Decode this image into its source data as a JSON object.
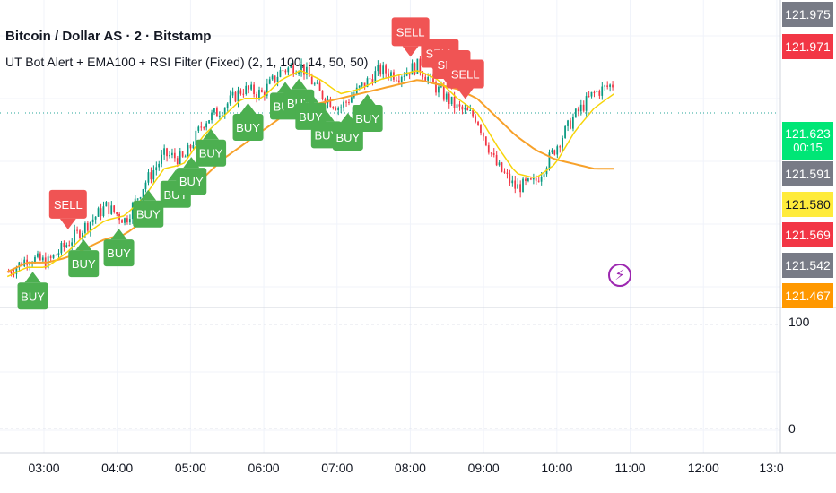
{
  "header": {
    "symbol_title": "Bitcoin / Dollar AS · 2 · Bitstamp",
    "indicator_title": "UT Bot Alert + EMA100 + RSI Filter (Fixed) (2, 1, 100, 14, 50, 50)"
  },
  "price_tags": [
    {
      "value": "121.975",
      "color": "#787b86"
    },
    {
      "value": "121.971",
      "color": "#f23645"
    },
    {
      "value": "121.623",
      "sub": "00:15",
      "color": "#00e676"
    },
    {
      "value": "121.591",
      "color": "#787b86"
    },
    {
      "value": "121.580",
      "color": "#ffeb3b",
      "text_color": "#131722"
    },
    {
      "value": "121.569",
      "color": "#f23645"
    },
    {
      "value": "121.542",
      "color": "#787b86"
    },
    {
      "value": "121.467",
      "color": "#ff9800"
    }
  ],
  "oscillator": {
    "top_label": "100",
    "bottom_label": "0"
  },
  "colors": {
    "candle_up": "#089981",
    "candle_down": "#f23645",
    "ema": "#f7a12a",
    "trail": "#f7d40a",
    "buy": "#4caf50",
    "sell": "#f05454",
    "grid": "#f0f3fa"
  },
  "icons": {
    "alert": "lightning-icon"
  },
  "chart_data": {
    "type": "candlestick",
    "x_ticks": [
      "03:00",
      "04:00",
      "05:00",
      "06:00",
      "07:00",
      "08:00",
      "09:00",
      "10:00",
      "11:00",
      "12:00",
      "13:0"
    ],
    "series": [
      {
        "type": "candle",
        "close": [
          121.47,
          121.5,
          121.49,
          121.53,
          121.57,
          121.61,
          121.58,
          121.66,
          121.72,
          121.71,
          121.79,
          121.82,
          121.86,
          121.85,
          121.9,
          121.91,
          121.85,
          121.82,
          121.86,
          121.9,
          121.89,
          121.91,
          121.86,
          121.82,
          121.8,
          121.7,
          121.65,
          121.66,
          121.73,
          121.8,
          121.85,
          121.87
        ]
      },
      {
        "type": "line",
        "close": [
          121.47,
          121.49,
          121.49,
          121.5,
          121.52,
          121.54,
          121.55,
          121.58,
          121.61,
          121.64,
          121.67,
          121.71,
          121.74,
          121.77,
          121.8,
          121.82,
          121.83,
          121.84,
          121.85,
          121.86,
          121.87,
          121.88,
          121.87,
          121.86,
          121.84,
          121.8,
          121.76,
          121.73,
          121.71,
          121.7,
          121.69,
          121.69
        ]
      },
      {
        "type": "line",
        "close": [
          121.46,
          121.48,
          121.48,
          121.51,
          121.55,
          121.58,
          121.59,
          121.63,
          121.69,
          121.7,
          121.76,
          121.8,
          121.84,
          121.84,
          121.88,
          121.9,
          121.88,
          121.85,
          121.86,
          121.88,
          121.89,
          121.9,
          121.88,
          121.84,
          121.81,
          121.74,
          121.68,
          121.67,
          121.7,
          121.77,
          121.82,
          121.85
        ]
      }
    ],
    "signals": [
      {
        "label": "SELL",
        "kind": "sell",
        "t": 4.1
      },
      {
        "label": "BUY",
        "kind": "buy",
        "t": 2.3
      },
      {
        "label": "BUY",
        "kind": "buy",
        "t": 4.9
      },
      {
        "label": "BUY",
        "kind": "buy",
        "t": 6.7
      },
      {
        "label": "BUY",
        "kind": "buy",
        "t": 8.2
      },
      {
        "label": "BUY",
        "kind": "buy",
        "t": 9.6
      },
      {
        "label": "BUY",
        "kind": "buy",
        "t": 10.4
      },
      {
        "label": "BUY",
        "kind": "buy",
        "t": 11.4
      },
      {
        "label": "BUY",
        "kind": "buy",
        "t": 13.3
      },
      {
        "label": "BUY",
        "kind": "buy",
        "t": 15.2
      },
      {
        "label": "BUY",
        "kind": "buy",
        "t": 15.9
      },
      {
        "label": "BUY",
        "kind": "buy",
        "t": 16.5
      },
      {
        "label": "BUY",
        "kind": "buy",
        "t": 17.3
      },
      {
        "label": "BUY",
        "kind": "buy",
        "t": 18.4
      },
      {
        "label": "BUY",
        "kind": "buy",
        "t": 19.4
      },
      {
        "label": "SELL",
        "kind": "sell",
        "t": 21.6
      },
      {
        "label": "SELL",
        "kind": "sell",
        "t": 23.1
      },
      {
        "label": "SELL",
        "kind": "sell",
        "t": 23.7
      },
      {
        "label": "SELL",
        "kind": "sell",
        "t": 24.4
      }
    ]
  }
}
